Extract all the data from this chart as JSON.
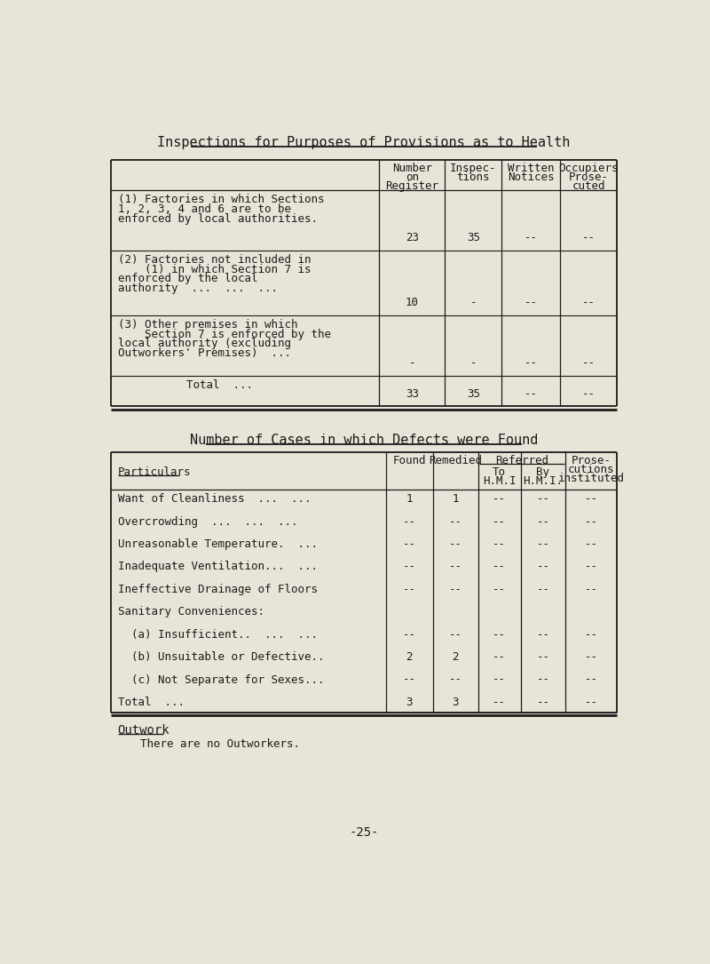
{
  "title": "Inspections for Purposes of Provisions as to Health",
  "title2": "Number of Cases in which Defects were Found",
  "bg_color": "#e8e5d8",
  "text_color": "#1a1a1a",
  "page_number": "-25-",
  "table1": {
    "col_headers": [
      [
        "Number",
        "on",
        "Register"
      ],
      [
        "Inspec-",
        "tions"
      ],
      [
        "Written",
        "Notices"
      ],
      [
        "Occupiers",
        "Prose-",
        "cuted"
      ]
    ],
    "rows": [
      {
        "label_lines": [
          "(1) Factories in which Sections",
          "1, 2, 3, 4 and 6 are to be",
          "enforced by local authorities."
        ],
        "values": [
          "23",
          "35",
          "--",
          "--"
        ]
      },
      {
        "label_lines": [
          "(2) Factories not included in",
          "    (1) in which Section 7 is",
          "enforced by the local",
          "authority  ...  ...  ..."
        ],
        "values": [
          "10",
          "-",
          "--",
          "--"
        ]
      },
      {
        "label_lines": [
          "(3) Other premises in which",
          "    Section 7 is enforced by the",
          "local authority (excluding",
          "Outworkers' Premises)  ..."
        ],
        "values": [
          "-",
          "-",
          "--",
          "--"
        ]
      },
      {
        "label_lines": [
          "Total  ..."
        ],
        "values": [
          "33",
          "35",
          "--",
          "--"
        ],
        "is_total": true
      }
    ]
  },
  "table2": {
    "rows": [
      {
        "label": "Want of Cleanliness  ...  ...",
        "found": "1",
        "remedied": "1",
        "to_hmi": "--",
        "by_hmi": "--",
        "prose": "--"
      },
      {
        "label": "Overcrowding  ...  ...  ...",
        "found": "--",
        "remedied": "--",
        "to_hmi": "--",
        "by_hmi": "--",
        "prose": "--"
      },
      {
        "label": "Unreasonable Temperature.  ...",
        "found": "--",
        "remedied": "--",
        "to_hmi": "--",
        "by_hmi": "--",
        "prose": "--"
      },
      {
        "label": "Inadequate Ventilation...  ...",
        "found": "--",
        "remedied": "--",
        "to_hmi": "--",
        "by_hmi": "--",
        "prose": "--"
      },
      {
        "label": "Ineffective Drainage of Floors",
        "found": "--",
        "remedied": "--",
        "to_hmi": "--",
        "by_hmi": "--",
        "prose": "--"
      },
      {
        "label": "Sanitary Conveniences:",
        "found": "",
        "remedied": "",
        "to_hmi": "",
        "by_hmi": "",
        "prose": ""
      },
      {
        "label": "  (a) Insufficient..  ...  ...",
        "found": "--",
        "remedied": "--",
        "to_hmi": "--",
        "by_hmi": "--",
        "prose": "--"
      },
      {
        "label": "  (b) Unsuitable or Defective..",
        "found": "2",
        "remedied": "2",
        "to_hmi": "--",
        "by_hmi": "--",
        "prose": "--"
      },
      {
        "label": "  (c) Not Separate for Sexes...",
        "found": "--",
        "remedied": "--",
        "to_hmi": "--",
        "by_hmi": "--",
        "prose": "--"
      },
      {
        "label": "Total  ...",
        "found": "3",
        "remedied": "3",
        "to_hmi": "--",
        "by_hmi": "--",
        "prose": "--",
        "is_total": true
      }
    ]
  },
  "outwork_title": "Outwork",
  "outwork_text": "There are no Outworkers."
}
